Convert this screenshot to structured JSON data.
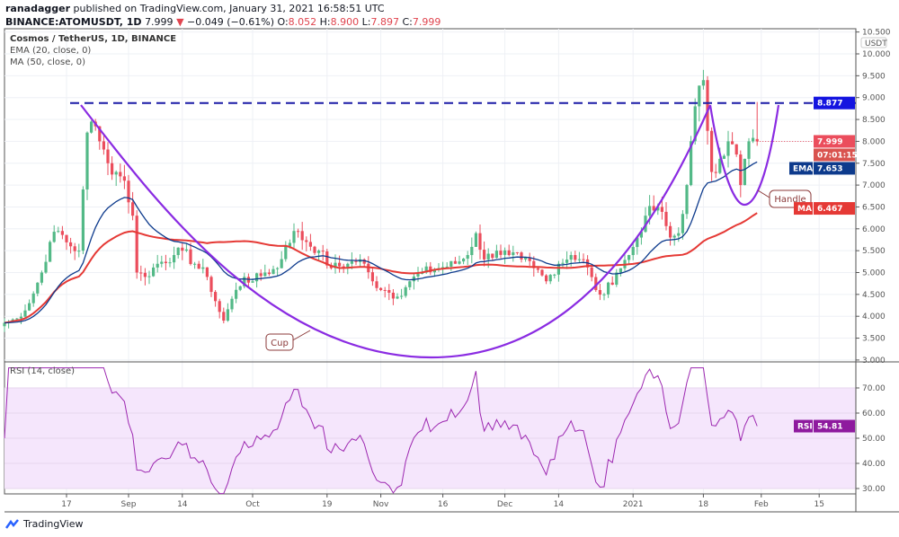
{
  "header": {
    "publisher": "ranadagger",
    "published_text": "published on TradingView.com, January 31, 2021 16:58:51 UTC",
    "symbol": "BINANCE:ATOMUSDT, 1D",
    "last": "7.999",
    "change": "−0.049 (−0.61%)",
    "o_label": "O:",
    "o": "8.052",
    "h_label": "H:",
    "h": "8.900",
    "l_label": "L:",
    "l": "7.897",
    "c_label": "C:",
    "c": "7.999"
  },
  "legend": {
    "title": "Cosmos / TetherUS, 1D, BINANCE",
    "ema": "EMA (20, close, 0)",
    "ma": "MA (50, close, 0)",
    "rsi": "RSI (14, close)"
  },
  "footer": {
    "brand": "TradingView"
  },
  "colors": {
    "up": "#53b987",
    "down": "#eb4d5c",
    "ema": "#0d3a8c",
    "ma": "#e53935",
    "rsi": "#9c27b0",
    "pattern": "#8a2be2",
    "resistance": "#1a1aa6"
  },
  "chart_data": {
    "type": "candlestick",
    "title": "Cosmos / TetherUS, 1D, BINANCE",
    "ylabel": "USDT",
    "ylim": [
      3.0,
      10.5
    ],
    "y_ticks": [
      "10.500",
      "10.000",
      "9.500",
      "9.000",
      "8.500",
      "8.000",
      "7.500",
      "7.000",
      "6.500",
      "6.000",
      "5.500",
      "5.000",
      "4.500",
      "4.000",
      "3.500",
      "3.000"
    ],
    "x_ticks": [
      {
        "label": "17",
        "day": 15
      },
      {
        "label": "Sep",
        "day": 30
      },
      {
        "label": "14",
        "day": 43
      },
      {
        "label": "Oct",
        "day": 60
      },
      {
        "label": "19",
        "day": 78
      },
      {
        "label": "Nov",
        "day": 91
      },
      {
        "label": "16",
        "day": 106
      },
      {
        "label": "Dec",
        "day": 121
      },
      {
        "label": "14",
        "day": 134
      },
      {
        "label": "2021",
        "day": 152
      },
      {
        "label": "18",
        "day": 169
      },
      {
        "label": "Feb",
        "day": 183
      },
      {
        "label": "15",
        "day": 197
      }
    ],
    "x_unit": "days since Aug 2, 2020",
    "close_keypoints": [
      [
        0,
        3.85
      ],
      [
        3,
        3.95
      ],
      [
        6,
        4.3
      ],
      [
        9,
        5.0
      ],
      [
        11,
        5.7
      ],
      [
        13,
        5.95
      ],
      [
        16,
        5.6
      ],
      [
        18,
        5.5
      ],
      [
        19,
        6.9
      ],
      [
        20,
        8.2
      ],
      [
        21,
        8.45
      ],
      [
        23,
        8.0
      ],
      [
        25,
        7.5
      ],
      [
        27,
        7.3
      ],
      [
        29,
        7.1
      ],
      [
        31,
        6.3
      ],
      [
        32,
        5.0
      ],
      [
        34,
        4.9
      ],
      [
        37,
        5.2
      ],
      [
        41,
        5.4
      ],
      [
        43,
        5.5
      ],
      [
        46,
        5.2
      ],
      [
        49,
        4.9
      ],
      [
        52,
        4.1
      ],
      [
        53,
        3.9
      ],
      [
        55,
        4.4
      ],
      [
        58,
        4.9
      ],
      [
        60,
        4.8
      ],
      [
        63,
        5.0
      ],
      [
        66,
        5.1
      ],
      [
        68,
        5.6
      ],
      [
        70,
        5.95
      ],
      [
        73,
        5.7
      ],
      [
        76,
        5.5
      ],
      [
        79,
        5.1
      ],
      [
        83,
        5.2
      ],
      [
        86,
        5.3
      ],
      [
        89,
        4.8
      ],
      [
        92,
        4.6
      ],
      [
        95,
        4.45
      ],
      [
        98,
        4.8
      ],
      [
        101,
        5.0
      ],
      [
        105,
        5.1
      ],
      [
        109,
        5.2
      ],
      [
        112,
        5.4
      ],
      [
        114,
        5.9
      ],
      [
        116,
        5.3
      ],
      [
        119,
        5.5
      ],
      [
        122,
        5.4
      ],
      [
        125,
        5.3
      ],
      [
        128,
        5.1
      ],
      [
        131,
        4.8
      ],
      [
        134,
        5.2
      ],
      [
        137,
        5.4
      ],
      [
        140,
        5.3
      ],
      [
        143,
        4.6
      ],
      [
        145,
        4.5
      ],
      [
        148,
        5.0
      ],
      [
        151,
        5.4
      ],
      [
        153,
        5.8
      ],
      [
        155,
        6.3
      ],
      [
        158,
        6.5
      ],
      [
        161,
        5.8
      ],
      [
        163,
        5.9
      ],
      [
        165,
        7.0
      ],
      [
        167,
        8.8
      ],
      [
        169,
        9.4
      ],
      [
        171,
        7.3
      ],
      [
        173,
        7.6
      ],
      [
        175,
        8.0
      ],
      [
        177,
        7.7
      ],
      [
        178,
        7.0
      ],
      [
        179,
        7.6
      ],
      [
        180,
        8.0
      ],
      [
        182,
        7.999
      ]
    ],
    "resistance": {
      "value": 8.877,
      "label": "8.877"
    },
    "annotations": [
      "Cup",
      "Handle"
    ],
    "last_price": {
      "value": 7.999,
      "label": "7.999",
      "countdown": "07:01:15"
    },
    "ema": {
      "period": 20,
      "last": 7.653,
      "tag": "EMA",
      "label": "7.653"
    },
    "ma": {
      "period": 50,
      "last": 6.467,
      "tag": "MA",
      "label": "6.467"
    },
    "rsi": {
      "period": 14,
      "last": 54.81,
      "tag": "RSI",
      "label": "54.81",
      "ylim": [
        26,
        80
      ],
      "y_ticks": [
        "70.00",
        "60.00",
        "50.00",
        "40.00",
        "30.00"
      ],
      "band": [
        30,
        70
      ]
    }
  }
}
